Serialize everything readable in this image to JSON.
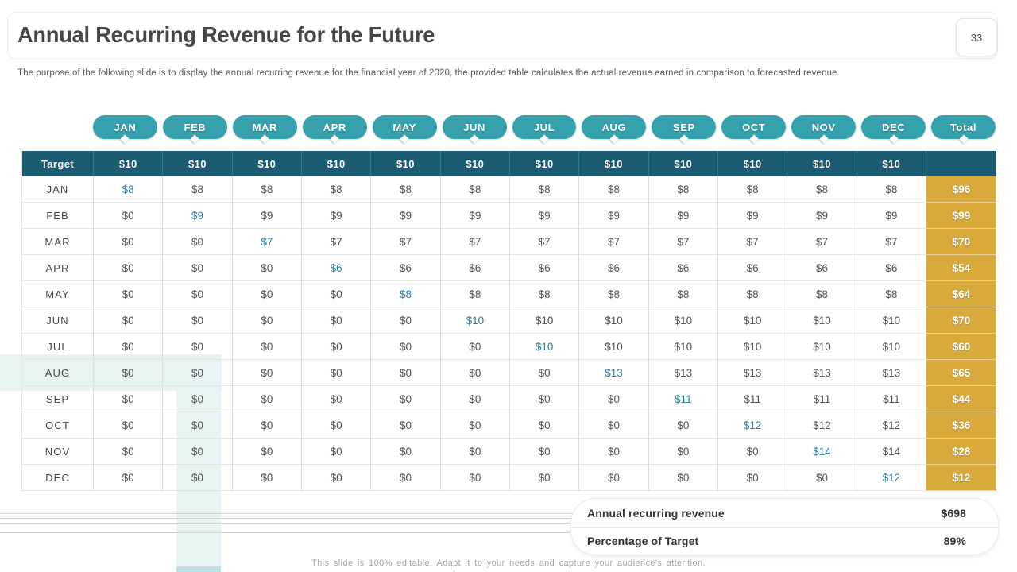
{
  "slide": {
    "title": "Annual Recurring Revenue for the Future",
    "page_number": "33",
    "description": "The purpose of the following slide is to display the annual recurring revenue for the financial year of 2020, the provided table calculates the actual revenue earned in comparison to forecasted revenue.",
    "footer_note": "This slide is 100% editable. Adapt it to your needs and capture your audience's attention."
  },
  "table": {
    "months": [
      "JAN",
      "FEB",
      "MAR",
      "APR",
      "MAY",
      "JUN",
      "JUL",
      "AUG",
      "SEP",
      "OCT",
      "NOV",
      "DEC"
    ],
    "total_label": "Total",
    "target_label": "Target",
    "target_values": [
      "$10",
      "$10",
      "$10",
      "$10",
      "$10",
      "$10",
      "$10",
      "$10",
      "$10",
      "$10",
      "$10",
      "$10"
    ],
    "rows": [
      {
        "label": "JAN",
        "values": [
          "$8",
          "$8",
          "$8",
          "$8",
          "$8",
          "$8",
          "$8",
          "$8",
          "$8",
          "$8",
          "$8",
          "$8"
        ],
        "total": "$96"
      },
      {
        "label": "FEB",
        "values": [
          "$0",
          "$9",
          "$9",
          "$9",
          "$9",
          "$9",
          "$9",
          "$9",
          "$9",
          "$9",
          "$9",
          "$9"
        ],
        "total": "$99"
      },
      {
        "label": "MAR",
        "values": [
          "$0",
          "$0",
          "$7",
          "$7",
          "$7",
          "$7",
          "$7",
          "$7",
          "$7",
          "$7",
          "$7",
          "$7"
        ],
        "total": "$70"
      },
      {
        "label": "APR",
        "values": [
          "$0",
          "$0",
          "$0",
          "$6",
          "$6",
          "$6",
          "$6",
          "$6",
          "$6",
          "$6",
          "$6",
          "$6"
        ],
        "total": "$54"
      },
      {
        "label": "MAY",
        "values": [
          "$0",
          "$0",
          "$0",
          "$0",
          "$8",
          "$8",
          "$8",
          "$8",
          "$8",
          "$8",
          "$8",
          "$8"
        ],
        "total": "$64"
      },
      {
        "label": "JUN",
        "values": [
          "$0",
          "$0",
          "$0",
          "$0",
          "$0",
          "$10",
          "$10",
          "$10",
          "$10",
          "$10",
          "$10",
          "$10"
        ],
        "total": "$70"
      },
      {
        "label": "JUL",
        "values": [
          "$0",
          "$0",
          "$0",
          "$0",
          "$0",
          "$0",
          "$10",
          "$10",
          "$10",
          "$10",
          "$10",
          "$10"
        ],
        "total": "$60"
      },
      {
        "label": "AUG",
        "values": [
          "$0",
          "$0",
          "$0",
          "$0",
          "$0",
          "$0",
          "$0",
          "$13",
          "$13",
          "$13",
          "$13",
          "$13"
        ],
        "total": "$65"
      },
      {
        "label": "SEP",
        "values": [
          "$0",
          "$0",
          "$0",
          "$0",
          "$0",
          "$0",
          "$0",
          "$0",
          "$11",
          "$11",
          "$11",
          "$11"
        ],
        "total": "$44"
      },
      {
        "label": "OCT",
        "values": [
          "$0",
          "$0",
          "$0",
          "$0",
          "$0",
          "$0",
          "$0",
          "$0",
          "$0",
          "$12",
          "$12",
          "$12"
        ],
        "total": "$36"
      },
      {
        "label": "NOV",
        "values": [
          "$0",
          "$0",
          "$0",
          "$0",
          "$0",
          "$0",
          "$0",
          "$0",
          "$0",
          "$0",
          "$14",
          "$14"
        ],
        "total": "$28"
      },
      {
        "label": "DEC",
        "values": [
          "$0",
          "$0",
          "$0",
          "$0",
          "$0",
          "$0",
          "$0",
          "$0",
          "$0",
          "$0",
          "$0",
          "$12"
        ],
        "total": "$12"
      }
    ]
  },
  "summary": {
    "rows": [
      {
        "label": "Annual recurring revenue",
        "value": "$698"
      },
      {
        "label": "Percentage of Target",
        "value": "89%"
      }
    ]
  },
  "colors": {
    "pill_teal": "#34a1ac",
    "target_row_teal": "#1b5c73",
    "total_column_gold": "#d8a93b",
    "diagonal_value_text": "#2e7e9e",
    "body_text": "#4a4f52",
    "decorative_band": "#e8f3f5"
  }
}
